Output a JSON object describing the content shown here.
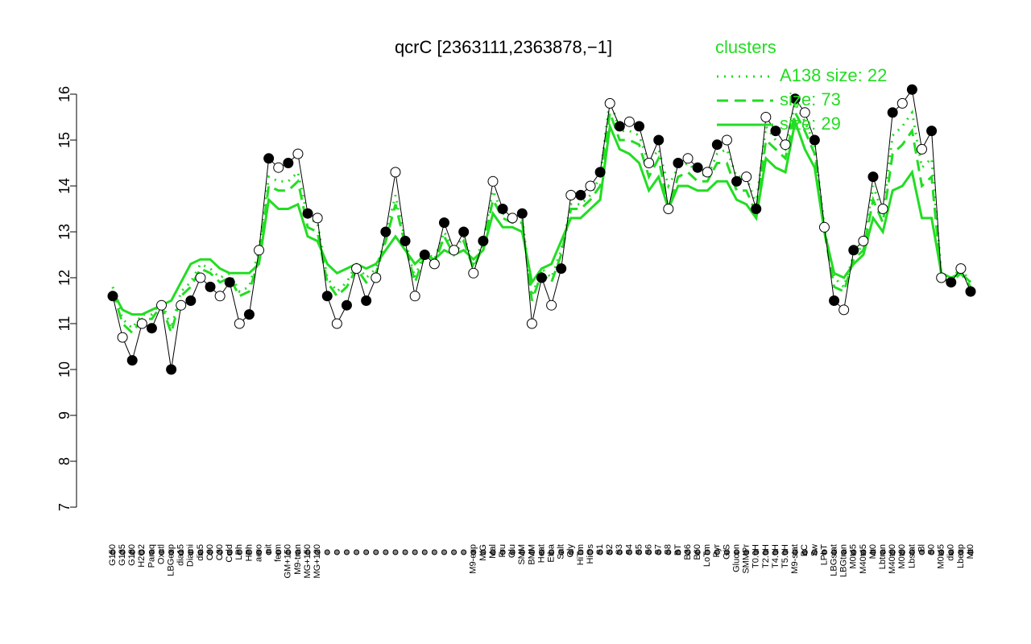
{
  "chart_data": {
    "type": "line",
    "title": "qcrC [2363111,2363878,−1]",
    "legend_title": "clusters",
    "legend_position": "top-right",
    "categories": [
      "G150",
      "G135",
      "G180",
      "H2O2",
      "Paraq",
      "Oxctl",
      "LBGexp",
      "dia15",
      "Diami",
      "dia5",
      "C90",
      "C30",
      "Cold",
      "LPh",
      "HPh",
      "aero",
      "nit",
      "ferm",
      "GM+150",
      "M9-tran",
      "MG+150",
      "MG+120",
      null,
      null,
      null,
      null,
      null,
      null,
      null,
      null,
      null,
      null,
      null,
      null,
      null,
      null,
      null,
      "M9-exp",
      "M/G",
      "Mal",
      "Fru",
      "Glu",
      "SMM",
      "BMM",
      "Heat",
      "Etha",
      "Salt",
      "Gly",
      "HiTm",
      "HiOs",
      "S1",
      "S2",
      "S3",
      "S4",
      "S5",
      "S6",
      "S7",
      "S8",
      "BT",
      "B36",
      "B60",
      "LoTm",
      "Pyr",
      "G/S",
      "Glucon",
      "SMMPr",
      "T0.0H",
      "T2.0H",
      "T4.0H",
      "T5.0H",
      "M9-stat",
      "BC",
      "Sw",
      "LPhT",
      "LBGstat",
      "LBGtran",
      "M0t45",
      "M40t45",
      "Mt0",
      "Lbtran",
      "M40t90",
      "M0t90",
      "Lbstat",
      "Bl",
      "S0",
      "M0t45",
      "dia0",
      "Lbexp",
      "Mt0"
    ],
    "values": [
      11.6,
      10.7,
      10.2,
      11.0,
      10.9,
      11.4,
      10.0,
      11.4,
      11.5,
      12.0,
      11.8,
      11.6,
      11.9,
      11.0,
      11.2,
      12.6,
      14.6,
      14.4,
      14.5,
      14.7,
      13.4,
      13.3,
      11.6,
      11.0,
      11.4,
      12.2,
      11.5,
      12.0,
      13.0,
      14.3,
      12.8,
      11.6,
      12.5,
      12.3,
      13.2,
      12.6,
      13.0,
      12.1,
      12.8,
      14.1,
      13.5,
      13.3,
      13.4,
      11.0,
      12.0,
      11.4,
      12.2,
      13.8,
      13.8,
      14.0,
      14.3,
      15.8,
      15.3,
      15.4,
      15.3,
      14.5,
      15.0,
      13.5,
      14.5,
      14.6,
      14.4,
      14.3,
      14.9,
      15.0,
      14.1,
      14.2,
      13.5,
      15.5,
      15.2,
      14.9,
      15.9,
      15.6,
      15.0,
      13.1,
      11.5,
      11.3,
      12.6,
      12.8,
      14.2,
      13.5,
      15.6,
      15.8,
      16.1,
      14.8,
      15.2,
      12.0,
      11.9,
      12.2,
      11.7
    ],
    "color": "#000000",
    "series": [
      {
        "name": "A138 size: 22",
        "color": "#22dd22",
        "style": "dotted",
        "values": [
          11.8,
          11.1,
          10.9,
          11.2,
          11.2,
          11.5,
          10.9,
          11.7,
          11.9,
          12.3,
          12.2,
          12.0,
          12.1,
          11.7,
          11.8,
          12.6,
          14.2,
          14.1,
          14.1,
          14.3,
          13.3,
          13.2,
          12.0,
          11.7,
          11.9,
          12.3,
          12.0,
          12.2,
          12.9,
          13.8,
          12.8,
          12.0,
          12.6,
          12.4,
          13.0,
          12.6,
          12.9,
          12.3,
          12.8,
          13.9,
          13.4,
          13.3,
          13.3,
          11.6,
          12.2,
          12.0,
          12.6,
          13.6,
          13.6,
          13.8,
          14.2,
          15.9,
          15.2,
          15.2,
          15.1,
          14.5,
          14.8,
          14.0,
          14.4,
          14.5,
          14.3,
          14.2,
          14.7,
          14.8,
          14.2,
          14.2,
          13.6,
          15.3,
          15.0,
          14.8,
          15.8,
          15.4,
          14.9,
          13.1,
          12.0,
          11.8,
          12.5,
          12.7,
          14.0,
          13.4,
          15.1,
          15.3,
          15.6,
          14.4,
          14.6,
          12.1,
          12.0,
          12.2,
          11.9
        ]
      },
      {
        "name": "size: 73",
        "color": "#22dd22",
        "style": "dashed",
        "values": [
          11.7,
          11.0,
          10.8,
          11.1,
          11.1,
          11.4,
          10.8,
          11.6,
          11.8,
          12.2,
          12.1,
          11.9,
          12.0,
          11.6,
          11.7,
          12.4,
          14.0,
          13.9,
          13.9,
          14.1,
          13.1,
          13.0,
          11.9,
          11.6,
          11.8,
          12.2,
          11.9,
          12.1,
          12.8,
          13.6,
          12.7,
          11.9,
          12.5,
          12.3,
          12.9,
          12.5,
          12.8,
          12.2,
          12.7,
          13.7,
          13.3,
          13.2,
          13.2,
          11.5,
          12.1,
          11.9,
          12.5,
          13.5,
          13.5,
          13.7,
          14.0,
          15.6,
          15.0,
          15.0,
          14.9,
          14.2,
          14.6,
          13.5,
          14.2,
          14.3,
          14.1,
          14.1,
          14.5,
          14.5,
          13.9,
          13.9,
          13.4,
          15.0,
          14.8,
          14.6,
          15.6,
          15.2,
          14.7,
          13.0,
          11.8,
          11.7,
          12.4,
          12.6,
          13.7,
          13.2,
          14.7,
          14.9,
          15.2,
          14.0,
          14.2,
          12.0,
          11.9,
          12.1,
          11.8
        ]
      },
      {
        "name": "size: 29",
        "color": "#22dd22",
        "style": "solid",
        "values": [
          11.7,
          11.3,
          11.2,
          11.2,
          11.3,
          11.4,
          11.5,
          11.9,
          12.3,
          12.4,
          12.4,
          12.2,
          12.1,
          12.1,
          12.1,
          12.3,
          13.7,
          13.5,
          13.5,
          13.6,
          12.9,
          12.8,
          12.3,
          12.1,
          12.2,
          12.3,
          12.2,
          12.3,
          12.6,
          12.9,
          12.6,
          12.3,
          12.5,
          12.4,
          12.6,
          12.5,
          12.6,
          12.4,
          12.6,
          13.4,
          13.1,
          13.1,
          13.0,
          11.9,
          12.2,
          12.3,
          12.8,
          13.3,
          13.3,
          13.5,
          13.7,
          15.3,
          14.8,
          14.7,
          14.5,
          13.9,
          14.2,
          13.5,
          14.0,
          14.0,
          13.9,
          13.9,
          14.1,
          14.1,
          13.7,
          13.6,
          13.3,
          14.6,
          14.4,
          14.3,
          15.4,
          14.8,
          14.4,
          13.0,
          12.1,
          12.0,
          12.3,
          12.5,
          13.3,
          13.0,
          13.9,
          14.0,
          14.3,
          13.3,
          13.3,
          12.1,
          12.0,
          12.1,
          11.9
        ]
      }
    ],
    "ylim": [
      7,
      16
    ],
    "yticks": [
      7,
      8,
      9,
      10,
      11,
      12,
      13,
      14,
      15,
      16
    ]
  }
}
